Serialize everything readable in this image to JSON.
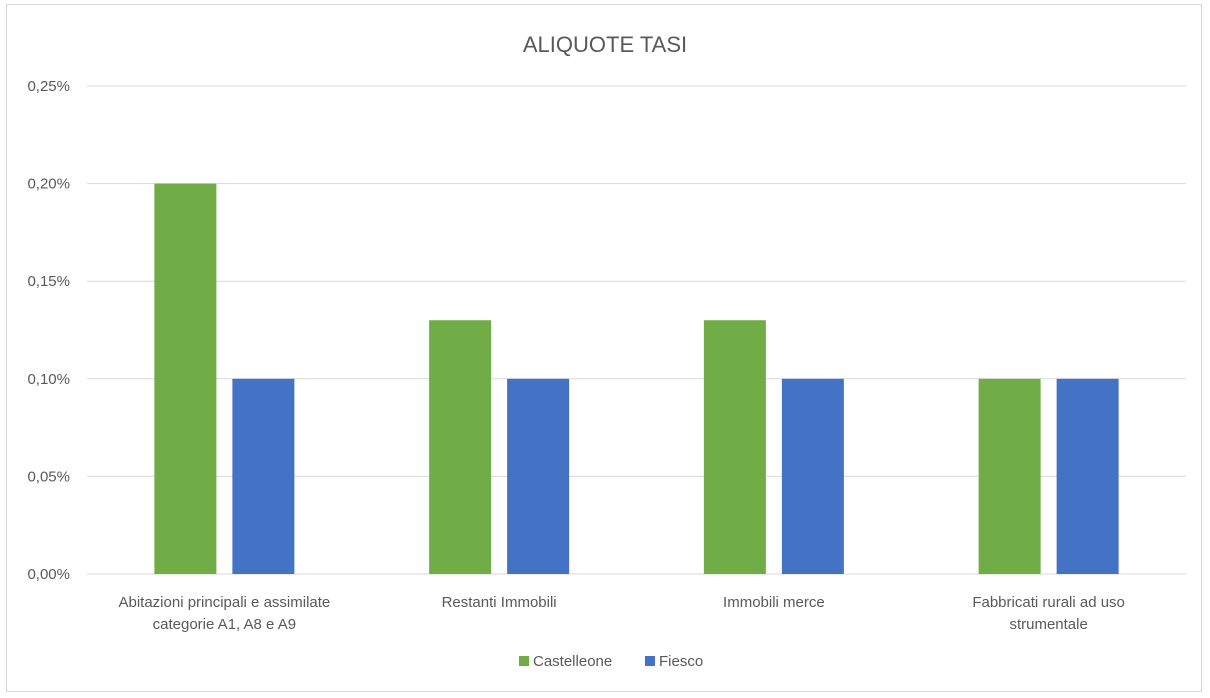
{
  "chart_data": {
    "type": "bar",
    "title": "ALIQUOTE TASI",
    "xlabel": "",
    "ylabel": "",
    "ylim": [
      0,
      0.25
    ],
    "yticks": [
      "0,00%",
      "0,05%",
      "0,10%",
      "0,15%",
      "0,20%",
      "0,25%"
    ],
    "ytick_values": [
      0,
      0.05,
      0.1,
      0.15,
      0.2,
      0.25
    ],
    "grid": true,
    "legend_position": "bottom",
    "categories": [
      [
        "Abitazioni principali e assimilate",
        "categorie A1, A8 e A9"
      ],
      [
        "Restanti Immobili"
      ],
      [
        "Immobili merce"
      ],
      [
        "Fabbricati rurali ad uso",
        "strumentale"
      ]
    ],
    "series": [
      {
        "name": "Castelleone",
        "color": "#70ad47",
        "values": [
          0.2,
          0.13,
          0.13,
          0.1
        ]
      },
      {
        "name": "Fiesco",
        "color": "#4472c4",
        "values": [
          0.1,
          0.1,
          0.1,
          0.1
        ]
      }
    ],
    "gridline_color": "#d9d9d9"
  }
}
